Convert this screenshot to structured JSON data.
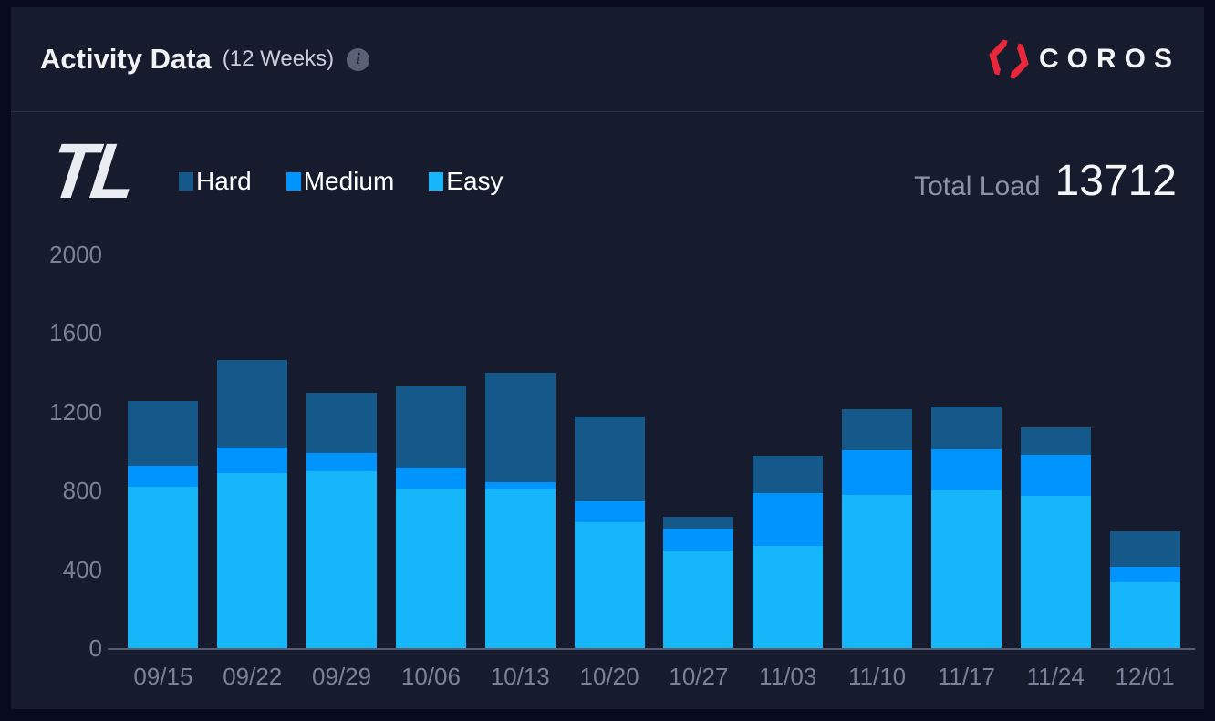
{
  "header": {
    "title": "Activity Data",
    "subtitle": "(12 Weeks)",
    "info_icon": "info-icon",
    "info_glyph": "i"
  },
  "brand": {
    "name": "COROS",
    "logo_icon": "coros-hexagon-icon",
    "color": "#e8283a"
  },
  "metric": {
    "abbr": "TL",
    "total_label": "Total Load",
    "total_value": "13712"
  },
  "chart_data": {
    "type": "bar",
    "stacked": true,
    "title": "Activity Data (12 Weeks) - Training Load",
    "categories": [
      "09/15",
      "09/22",
      "09/29",
      "10/06",
      "10/13",
      "10/20",
      "10/27",
      "11/03",
      "11/10",
      "11/17",
      "11/24",
      "12/01"
    ],
    "series": [
      {
        "name": "Hard",
        "color": "#14598a",
        "values": [
          330,
          445,
          305,
          415,
          555,
          430,
          60,
          190,
          210,
          215,
          140,
          180
        ]
      },
      {
        "name": "Medium",
        "color": "#0095fe",
        "values": [
          105,
          130,
          90,
          105,
          40,
          105,
          110,
          265,
          225,
          210,
          205,
          75
        ]
      },
      {
        "name": "Easy",
        "color": "#16b7fa",
        "values": [
          820,
          890,
          900,
          810,
          805,
          640,
          495,
          520,
          780,
          800,
          775,
          337
        ]
      }
    ],
    "totals": [
      1255,
      1465,
      1295,
      1330,
      1400,
      1175,
      665,
      975,
      1215,
      1225,
      1120,
      592
    ],
    "total_load": 13712,
    "xlabel": "",
    "ylabel": "",
    "ylim": [
      0,
      2000
    ],
    "yticks": [
      0,
      400,
      800,
      1200,
      1600,
      2000
    ],
    "grid": false,
    "legend_position": "top-left"
  }
}
